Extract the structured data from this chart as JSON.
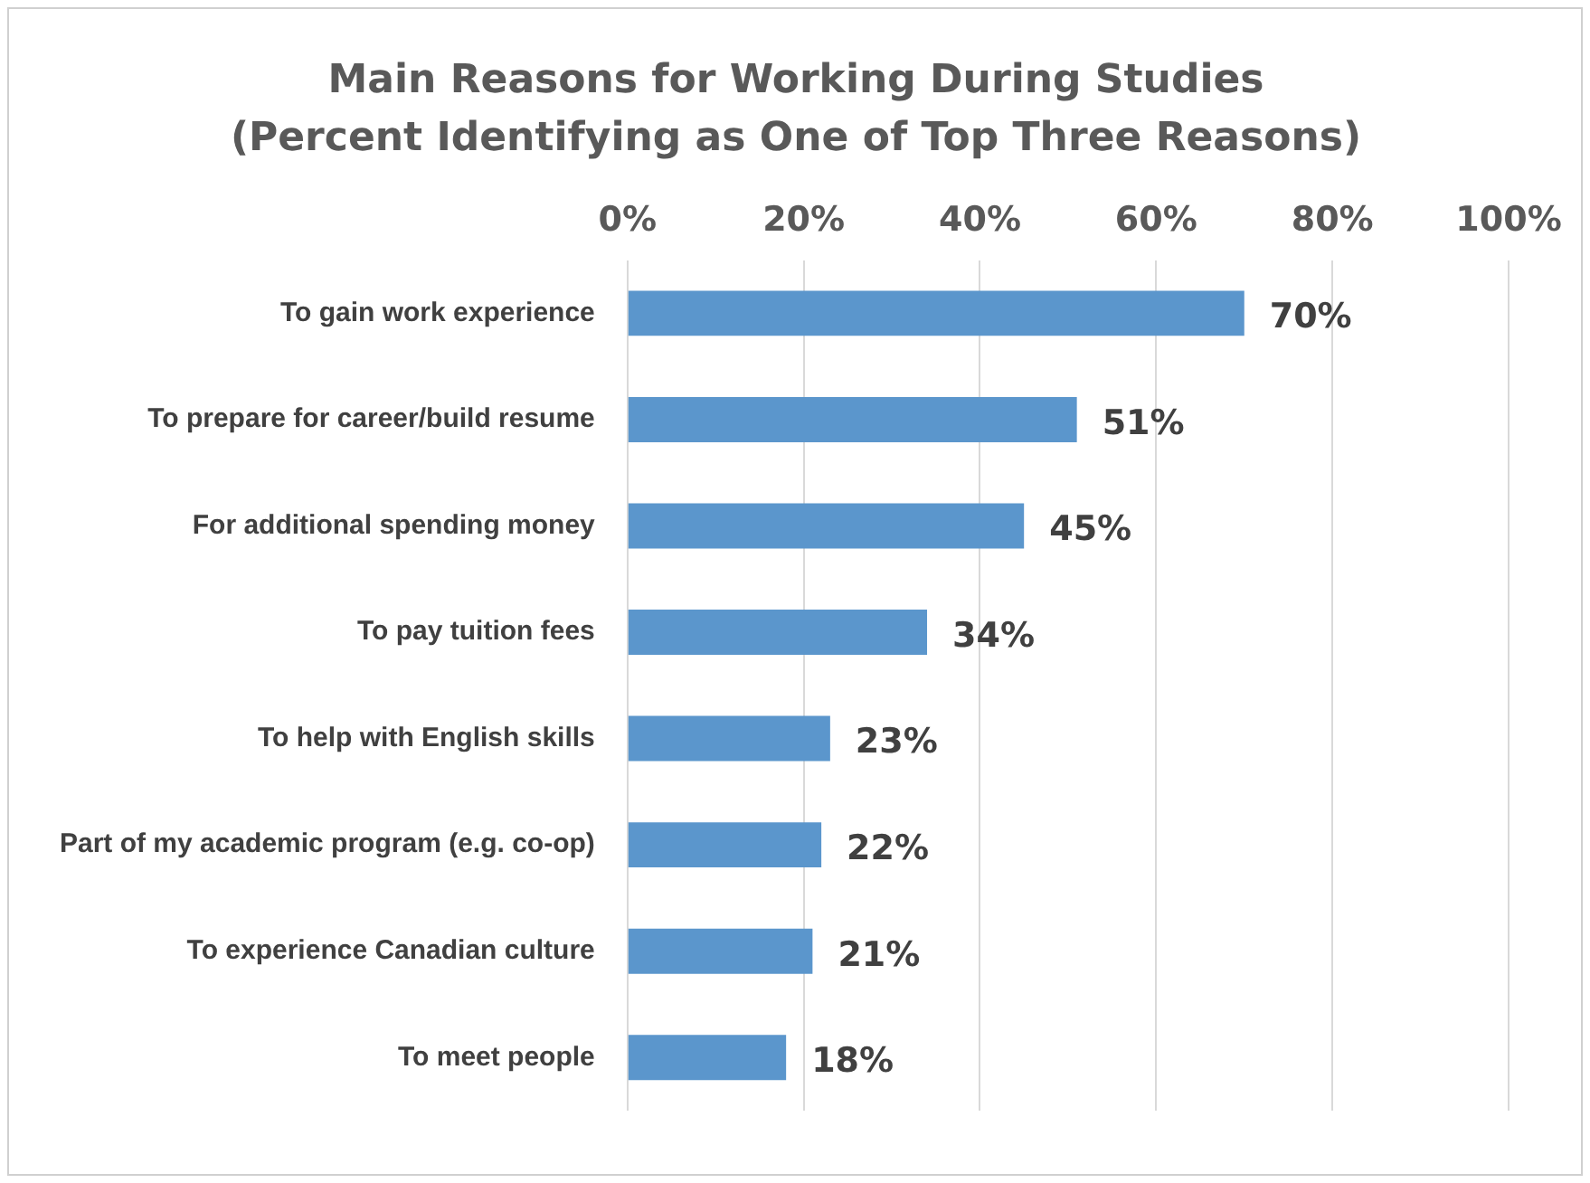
{
  "chart_data": {
    "type": "bar",
    "orientation": "horizontal",
    "title": "Main Reasons for Working During Studies (Percent Identifying as One of Top Three Reasons)",
    "categories": [
      "To gain work experience",
      "To prepare for career/build resume",
      "For additional spending money",
      "To pay tuition fees",
      "To help with English skills",
      "Part of my academic program (e.g. co-op)",
      "To experience Canadian culture",
      "To meet people"
    ],
    "values": [
      70,
      51,
      45,
      34,
      23,
      22,
      21,
      18
    ],
    "value_labels": [
      "70%",
      "51%",
      "45%",
      "34%",
      "23%",
      "22%",
      "21%",
      "18%"
    ],
    "color": "#5b96cc",
    "xlim": [
      0,
      100
    ],
    "xticks": [
      {
        "value": 0,
        "label": "0%"
      },
      {
        "value": 20,
        "label": "20%"
      },
      {
        "value": 40,
        "label": "40%"
      },
      {
        "value": 60,
        "label": "60%"
      },
      {
        "value": 80,
        "label": "80%"
      },
      {
        "value": 100,
        "label": "100%"
      }
    ],
    "grid": "x",
    "legend": false
  }
}
